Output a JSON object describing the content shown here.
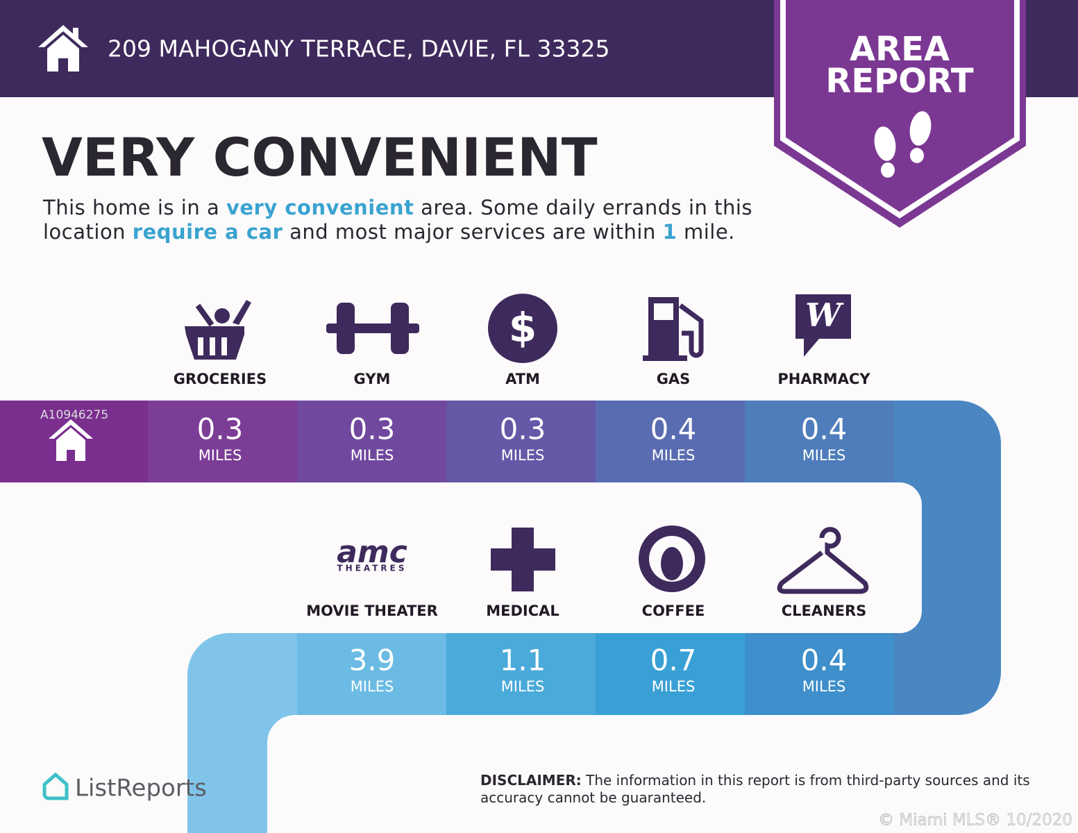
{
  "header": {
    "address": "209 MAHOGANY TERRACE, DAVIE, FL 33325"
  },
  "badge": {
    "line1": "AREA",
    "line2": "REPORT"
  },
  "heading": "VERY CONVENIENT",
  "description": [
    "This home is in a ",
    "very convenient",
    " area. Some daily errands in this location ",
    "require a car",
    " and most major services are within ",
    "1",
    " mile."
  ],
  "watermark": "A10946275",
  "amenities": {
    "row1": [
      {
        "label": "GROCERIES",
        "distance": 0.3,
        "unit": "MILES"
      },
      {
        "label": "GYM",
        "distance": 0.3,
        "unit": "MILES"
      },
      {
        "label": "ATM",
        "distance": 0.3,
        "unit": "MILES"
      },
      {
        "label": "GAS",
        "distance": 0.4,
        "unit": "MILES"
      },
      {
        "label": "PHARMACY",
        "distance": 0.4,
        "unit": "MILES"
      }
    ],
    "row2": [
      {
        "label": "MOVIE THEATER",
        "distance": 3.9,
        "unit": "MILES"
      },
      {
        "label": "MEDICAL",
        "distance": 1.1,
        "unit": "MILES"
      },
      {
        "label": "COFFEE",
        "distance": 0.7,
        "unit": "MILES"
      },
      {
        "label": "CLEANERS",
        "distance": 0.4,
        "unit": "MILES"
      }
    ]
  },
  "logos": {
    "amc": "amc",
    "amc_sub": "THEATRES",
    "atm": "$",
    "pharmacy": "W"
  },
  "brand": "ListReports",
  "disclaimer": {
    "label": "DISCLAIMER:",
    "text": " The information in this report is from third-party sources and its accuracy cannot be guaranteed."
  },
  "copyright": "© Miami MLS® 10/2020"
}
